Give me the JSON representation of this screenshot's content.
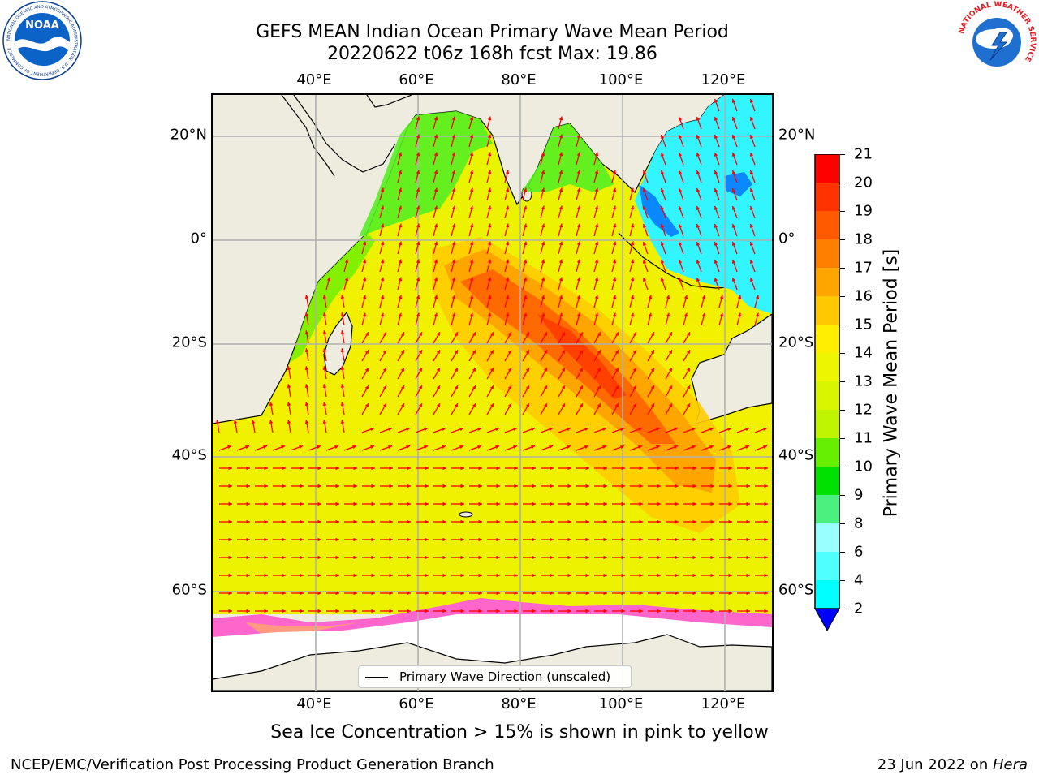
{
  "title": {
    "line1": "GEFS MEAN Indian Ocean Primary Wave Mean Period",
    "line2": "20220622 t06z 168h fcst   Max: 19.86"
  },
  "map": {
    "lon_ticks": [
      "40°E",
      "60°E",
      "80°E",
      "100°E",
      "120°E"
    ],
    "lat_ticks": [
      "20°N",
      "0°",
      "20°S",
      "40°S",
      "60°S"
    ],
    "legend_label": "Primary Wave Direction (unscaled)",
    "arrow_color": "#ff0000",
    "land_color": "#eeecdf",
    "ice_color": "#ffffff"
  },
  "colorbar": {
    "label": "Primary Wave Mean Period [s]",
    "ticks": [
      "21",
      "20",
      "19",
      "18",
      "17",
      "16",
      "15",
      "14",
      "13",
      "12",
      "11",
      "10",
      "9",
      "8",
      "6",
      "4",
      "2"
    ],
    "colors": [
      "#fe0000",
      "#ff3300",
      "#ff5a00",
      "#ff8000",
      "#ffa500",
      "#ffc800",
      "#ffee00",
      "#eef500",
      "#d9f500",
      "#bff500",
      "#66f000",
      "#00e100",
      "#4cf07f",
      "#99ffff",
      "#4dffff",
      "#00ffff",
      "#0099ff"
    ],
    "under_color": "#0000ff"
  },
  "caption": "Sea Ice Concentration > 15% is shown in pink to yellow",
  "footer": {
    "left": "NCEP/EMC/Verification Post Processing Product Generation Branch",
    "right_prefix": "23 Jun 2022 on ",
    "right_italic": "Hera"
  },
  "logos": {
    "noaa_text": "NOAA",
    "noaa_ring_text": "NATIONAL OCEANIC AND ATMOSPHERIC ADMINISTRATION · U.S. DEPARTMENT OF COMMERCE",
    "nws_ring_text": "NATIONAL WEATHER SERVICE"
  }
}
